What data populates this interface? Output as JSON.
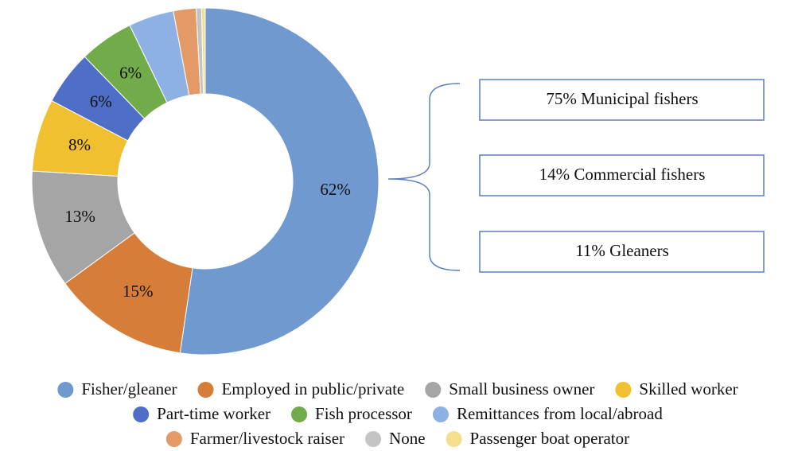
{
  "chart_data": {
    "type": "donut",
    "categories": [
      "Fisher/gleaner",
      "Employed in public/private",
      "Small business owner",
      "Skilled worker",
      "Part-time worker",
      "Fish processor",
      "Remittances from local/abroad",
      "Farmer/livestock raiser",
      "None",
      "Passenger boat operator"
    ],
    "values": [
      62,
      15,
      13,
      8,
      6,
      6,
      5,
      2.5,
      0.6,
      0.4
    ],
    "value_labels": [
      "62%",
      "15%",
      "13%",
      "8%",
      "6%",
      "6%",
      null,
      null,
      null,
      null
    ],
    "colors": [
      "#7099d0",
      "#d77d3a",
      "#a5a5a5",
      "#f0c030",
      "#4e6fc5",
      "#72ab4a",
      "#8db1e2",
      "#e49a66",
      "#c4c4c4",
      "#f4e08c"
    ],
    "annotations": [
      "75% Municipal fishers",
      "14% Commercial fishers",
      "11% Gleaners"
    ],
    "legend": "bottom"
  }
}
